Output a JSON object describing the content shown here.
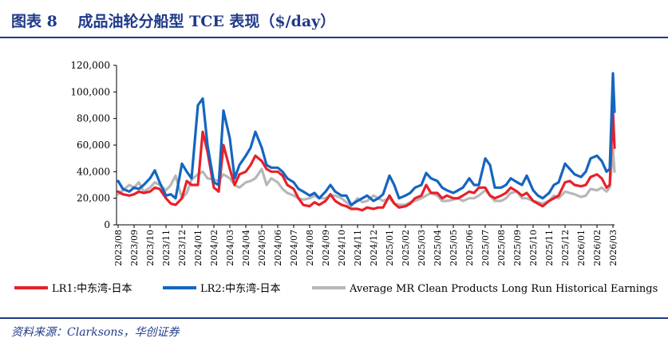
{
  "header": {
    "title": "图表 8　 成品油轮分船型 TCE 表现（$/day）"
  },
  "footer": {
    "source": "资料来源：Clarksons，华创证券"
  },
  "chart_data": {
    "type": "line",
    "title": "",
    "xlabel": "",
    "ylabel": "",
    "ylim": [
      0,
      120000
    ],
    "yticks": [
      0,
      20000,
      40000,
      60000,
      80000,
      100000,
      120000
    ],
    "ytick_labels": [
      "0",
      "20,000",
      "40,000",
      "60,000",
      "80,000",
      "100,000",
      "120,000"
    ],
    "xtick_labels": [
      "2023/08",
      "2023/09",
      "2023/10",
      "2023/11",
      "2023/12",
      "2024/01",
      "2024/02",
      "2024/03",
      "2024/04",
      "2024/05",
      "2024/06",
      "2024/07",
      "2024/08",
      "2024/09",
      "2024/10",
      "2024/11",
      "2024/12",
      "2025/01",
      "2025/02",
      "2025/03",
      "2025/04",
      "2025/05",
      "2025/06",
      "2025/07",
      "2025/08",
      "2025/09",
      "2025/10",
      "2025/11",
      "2025/12",
      "2026/01",
      "2026/02",
      "2026/03"
    ],
    "x_unit": "month index (0 = 2023/08)",
    "grid": false,
    "legend_position": "bottom",
    "series": [
      {
        "name": "LR1:中东湾-日本",
        "color": "#e8202a",
        "x": [
          0,
          0.3,
          0.7,
          1,
          1.3,
          1.6,
          2,
          2.3,
          2.6,
          3,
          3.3,
          3.6,
          4,
          4.3,
          4.6,
          5,
          5.3,
          5.6,
          6,
          6.3,
          6.6,
          7,
          7.3,
          7.6,
          8,
          8.3,
          8.6,
          9,
          9.3,
          9.6,
          10,
          10.3,
          10.6,
          11,
          11.3,
          11.6,
          12,
          12.3,
          12.6,
          13,
          13.3,
          13.6,
          14,
          14.3,
          14.6,
          15,
          15.3,
          15.6,
          16,
          16.3,
          16.6,
          17,
          17.3,
          17.6,
          18,
          18.3,
          18.6,
          19,
          19.3,
          19.6,
          20,
          20.3,
          20.6,
          21,
          21.3,
          21.6,
          22,
          22.3,
          22.6,
          23,
          23.3,
          23.6,
          24,
          24.3,
          24.6,
          25,
          25.3,
          25.6,
          26,
          26.3,
          26.6,
          27,
          27.3,
          27.6,
          28,
          28.3,
          28.6,
          29,
          29.3,
          29.6,
          30,
          30.3,
          30.6,
          30.8,
          31,
          31.1
        ],
        "y": [
          25000,
          23000,
          22000,
          23000,
          25000,
          24000,
          25000,
          28000,
          27000,
          20000,
          16000,
          15000,
          20000,
          33000,
          30000,
          30000,
          70000,
          55000,
          28000,
          25000,
          60000,
          42000,
          30000,
          38000,
          40000,
          45000,
          52000,
          48000,
          42000,
          40000,
          40000,
          37000,
          30000,
          27000,
          20000,
          15000,
          14000,
          17000,
          15000,
          18000,
          23000,
          18000,
          15000,
          14000,
          12000,
          12000,
          11000,
          13000,
          12000,
          13000,
          13000,
          22000,
          16000,
          13000,
          14000,
          16000,
          20000,
          22000,
          30000,
          24000,
          24000,
          20000,
          22000,
          20000,
          20000,
          22000,
          25000,
          24000,
          28000,
          28000,
          22000,
          20000,
          22000,
          24000,
          28000,
          25000,
          22000,
          24000,
          18000,
          16000,
          14000,
          18000,
          20000,
          22000,
          32000,
          33000,
          30000,
          29000,
          30000,
          36000,
          38000,
          35000,
          28000,
          30000,
          86000,
          58000
        ]
      },
      {
        "name": "LR2:中东湾-日本",
        "color": "#1565c0",
        "x": [
          0,
          0.3,
          0.7,
          1,
          1.3,
          1.6,
          2,
          2.3,
          2.6,
          3,
          3.3,
          3.6,
          4,
          4.3,
          4.6,
          5,
          5.3,
          5.6,
          6,
          6.3,
          6.6,
          7,
          7.3,
          7.6,
          8,
          8.3,
          8.6,
          9,
          9.3,
          9.6,
          10,
          10.3,
          10.6,
          11,
          11.3,
          11.6,
          12,
          12.3,
          12.6,
          13,
          13.3,
          13.6,
          14,
          14.3,
          14.6,
          15,
          15.3,
          15.6,
          16,
          16.3,
          16.6,
          17,
          17.3,
          17.6,
          18,
          18.3,
          18.6,
          19,
          19.3,
          19.6,
          20,
          20.3,
          20.6,
          21,
          21.3,
          21.6,
          22,
          22.3,
          22.6,
          23,
          23.3,
          23.6,
          24,
          24.3,
          24.6,
          25,
          25.3,
          25.6,
          26,
          26.3,
          26.6,
          27,
          27.3,
          27.6,
          28,
          28.3,
          28.6,
          29,
          29.3,
          29.6,
          30,
          30.3,
          30.6,
          30.8,
          31,
          31.1
        ],
        "y": [
          33000,
          27000,
          25000,
          28000,
          27000,
          30000,
          35000,
          41000,
          32000,
          22000,
          23000,
          20000,
          46000,
          40000,
          35000,
          90000,
          95000,
          60000,
          32000,
          30000,
          86000,
          65000,
          35000,
          45000,
          52000,
          58000,
          70000,
          58000,
          45000,
          43000,
          43000,
          40000,
          35000,
          32000,
          27000,
          25000,
          22000,
          24000,
          20000,
          25000,
          30000,
          25000,
          22000,
          22000,
          15000,
          18000,
          20000,
          22000,
          18000,
          20000,
          23000,
          37000,
          30000,
          20000,
          22000,
          24000,
          28000,
          30000,
          39000,
          35000,
          33000,
          28000,
          26000,
          24000,
          26000,
          28000,
          35000,
          30000,
          30000,
          50000,
          45000,
          28000,
          28000,
          30000,
          35000,
          32000,
          30000,
          37000,
          26000,
          22000,
          20000,
          24000,
          30000,
          32000,
          46000,
          42000,
          38000,
          36000,
          40000,
          50000,
          52000,
          48000,
          40000,
          42000,
          114000,
          85000
        ]
      },
      {
        "name": "Average MR Clean Products Long Run Historical Earnings",
        "color": "#b7b7b7",
        "x": [
          0,
          0.3,
          0.7,
          1,
          1.3,
          1.6,
          2,
          2.3,
          2.6,
          3,
          3.3,
          3.6,
          4,
          4.3,
          4.6,
          5,
          5.3,
          5.6,
          6,
          6.3,
          6.6,
          7,
          7.3,
          7.6,
          8,
          8.3,
          8.6,
          9,
          9.3,
          9.6,
          10,
          10.3,
          10.6,
          11,
          11.3,
          11.6,
          12,
          12.3,
          12.6,
          13,
          13.3,
          13.6,
          14,
          14.3,
          14.6,
          15,
          15.3,
          15.6,
          16,
          16.3,
          16.6,
          17,
          17.3,
          17.6,
          18,
          18.3,
          18.6,
          19,
          19.3,
          19.6,
          20,
          20.3,
          20.6,
          21,
          21.3,
          21.6,
          22,
          22.3,
          22.6,
          23,
          23.3,
          23.6,
          24,
          24.3,
          24.6,
          25,
          25.3,
          25.6,
          26,
          26.3,
          26.6,
          27,
          27.3,
          27.6,
          28,
          28.3,
          28.6,
          29,
          29.3,
          29.6,
          30,
          30.3,
          30.6,
          30.8,
          31,
          31.1
        ],
        "y": [
          23000,
          26000,
          30000,
          28000,
          32000,
          25000,
          28000,
          32000,
          30000,
          26000,
          30000,
          37000,
          20000,
          24000,
          34000,
          38000,
          40000,
          35000,
          34000,
          33000,
          38000,
          35000,
          30000,
          28000,
          32000,
          33000,
          35000,
          42000,
          30000,
          35000,
          32000,
          27000,
          24000,
          22000,
          20000,
          19000,
          20000,
          22000,
          20000,
          20000,
          22000,
          22000,
          20000,
          17000,
          14000,
          20000,
          17000,
          18000,
          22000,
          20000,
          18000,
          20000,
          16000,
          15000,
          15000,
          17000,
          18000,
          20000,
          22000,
          24000,
          22000,
          18000,
          18000,
          19000,
          20000,
          18000,
          20000,
          20000,
          22000,
          26000,
          22000,
          18000,
          18000,
          20000,
          24000,
          25000,
          20000,
          20000,
          18000,
          17000,
          16000,
          18000,
          22000,
          20000,
          25000,
          24000,
          23000,
          21000,
          22000,
          27000,
          26000,
          28000,
          25000,
          28000,
          57000,
          40000
        ]
      }
    ]
  }
}
